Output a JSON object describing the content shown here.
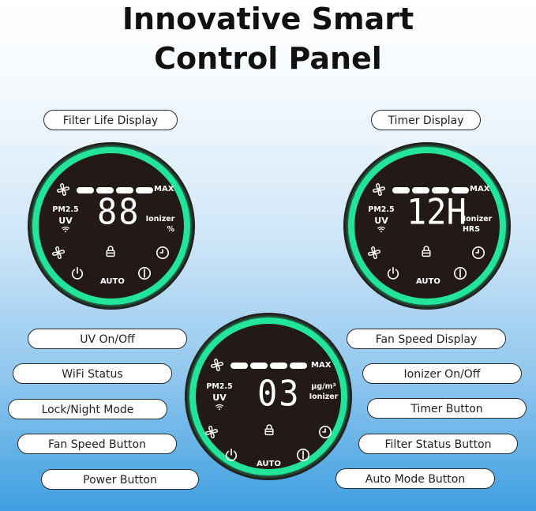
{
  "title": {
    "line1": "Innovative Smart",
    "line2": "Control Panel"
  },
  "labels": {
    "filter_life_display": "Filter Life Display",
    "timer_display": "Timer Display",
    "uv_on_off": "UV On/Off",
    "wifi_status": "WiFi Status",
    "lock_night_mode": "Lock/Night Mode",
    "fan_speed_button": "Fan Speed Button",
    "power_button": "Power Button",
    "fan_speed_display": "Fan Speed Display",
    "ionizer_on_off": "Ionizer On/Off",
    "timer_button": "Timer Button",
    "filter_status_button": "Filter Status Button",
    "auto_mode_button": "Auto Mode Button"
  },
  "panels": [
    {
      "max": "MAX",
      "pm25": "PM2.5",
      "uv": "UV",
      "digits": "88",
      "right1": "Ionizer",
      "right2": "%",
      "auto": "AUTO"
    },
    {
      "max": "MAX",
      "pm25": "PM2.5",
      "uv": "UV",
      "digits": "12H",
      "right1": "Ionizer",
      "right2": "HRS",
      "auto": "AUTO"
    },
    {
      "max": "MAX",
      "pm25": "PM2.5",
      "uv": "UV",
      "digits": "03",
      "right1": "μg/m³",
      "right2": "Ionizer",
      "auto": "AUTO"
    }
  ],
  "colors": {
    "ring": "#23e49b",
    "panel": "#231a18"
  }
}
